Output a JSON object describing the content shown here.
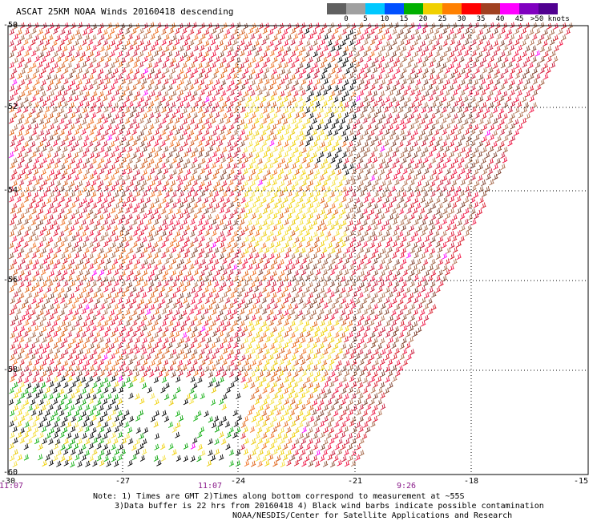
{
  "title": "ASCAT 25KM NOAA Winds 20160418 descending",
  "legend": {
    "unit_label": ">50 knots",
    "ticks": [
      "0",
      "5",
      "10",
      "15",
      "20",
      "25",
      "30",
      "35",
      "40",
      "45"
    ],
    "colors": [
      "#606060",
      "#a0a0a0",
      "#00c8ff",
      "#0050ff",
      "#00b000",
      "#f0d000",
      "#ff8000",
      "#ff0000",
      "#a04020",
      "#ff00ff",
      "#8000c0",
      "#500090"
    ]
  },
  "map": {
    "lat_labels": [
      "-50",
      "-52",
      "-54",
      "-56",
      "-58",
      "-60"
    ],
    "lon_labels": [
      "-30",
      "-27",
      "-24",
      "-21",
      "-18",
      "-15"
    ],
    "time_labels": [
      "11:07",
      "11:07",
      "9:26"
    ],
    "grid": true
  },
  "notes": {
    "line1": "Note: 1) Times are GMT 2)Times along bottom correspond to measurement at ~55S",
    "line2": "3)Data buffer is 22 hrs from 20160418 4) Black wind barbs indicate possible contamination",
    "line3": "NOAA/NESDIS/Center for Satellite Applications and Research"
  }
}
